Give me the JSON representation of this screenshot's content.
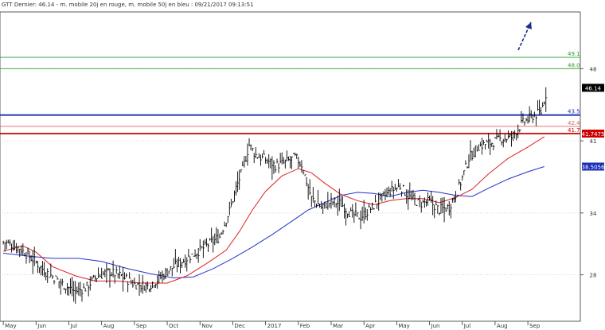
{
  "chart_data": {
    "type": "line",
    "title": "GTT Dernier: 46.14 - m. mobile 20j en rouge, m. mobile 50j en bleu : 09/21/2017 09:13:51",
    "y_range": [
      23.5,
      53.5
    ],
    "y_ticks": [
      "48",
      "41",
      "34",
      "28"
    ],
    "y_tick_values": [
      48,
      41,
      34,
      28
    ],
    "x_months": [
      "May",
      "Jun",
      "Jul",
      "Aug",
      "Sep",
      "Oct",
      "Nov",
      "Dec",
      "2017",
      "Feb",
      "Mar",
      "Apr",
      "May",
      "Jun",
      "Jul",
      "Aug",
      "Sep"
    ],
    "x_month_index": [
      0,
      1,
      2,
      3,
      4,
      5,
      6,
      7,
      8,
      9,
      10,
      11,
      12,
      13,
      14,
      15,
      16
    ],
    "price": [
      [
        0,
        31.2
      ],
      [
        0.5,
        30.6
      ],
      [
        1.0,
        29.2
      ],
      [
        1.3,
        28.3
      ],
      [
        1.6,
        27.6
      ],
      [
        1.9,
        26.9
      ],
      [
        2.2,
        26.4
      ],
      [
        2.5,
        26.7
      ],
      [
        2.8,
        27.7
      ],
      [
        3.2,
        28.3
      ],
      [
        3.6,
        27.9
      ],
      [
        4.0,
        27.1
      ],
      [
        4.4,
        26.9
      ],
      [
        4.7,
        27.5
      ],
      [
        5.1,
        28.6
      ],
      [
        5.6,
        29.6
      ],
      [
        6.1,
        30.6
      ],
      [
        6.6,
        31.7
      ],
      [
        6.9,
        34.2
      ],
      [
        7.1,
        36.4
      ],
      [
        7.3,
        38.2
      ],
      [
        7.5,
        40.6
      ],
      [
        7.7,
        39.6
      ],
      [
        8.0,
        39.2
      ],
      [
        8.3,
        38.6
      ],
      [
        8.6,
        38.9
      ],
      [
        8.9,
        39.4
      ],
      [
        9.1,
        38.7
      ],
      [
        9.4,
        35.4
      ],
      [
        9.7,
        34.6
      ],
      [
        10.0,
        35.1
      ],
      [
        10.3,
        34.9
      ],
      [
        10.6,
        33.9
      ],
      [
        10.9,
        33.6
      ],
      [
        11.2,
        34.4
      ],
      [
        11.5,
        35.3
      ],
      [
        11.8,
        36.1
      ],
      [
        12.1,
        36.6
      ],
      [
        12.4,
        35.5
      ],
      [
        12.7,
        34.9
      ],
      [
        13.0,
        35.1
      ],
      [
        13.3,
        34.3
      ],
      [
        13.6,
        34.6
      ],
      [
        13.9,
        36.5
      ],
      [
        14.2,
        39.3
      ],
      [
        14.5,
        40.5
      ],
      [
        14.9,
        40.8
      ],
      [
        15.2,
        41.2
      ],
      [
        15.5,
        41.3
      ],
      [
        15.8,
        42.6
      ],
      [
        16.1,
        43.3
      ],
      [
        16.4,
        43.8
      ],
      [
        16.6,
        46.1
      ]
    ],
    "ma20": [
      [
        0,
        30.3
      ],
      [
        0.6,
        30.8
      ],
      [
        1.0,
        30.2
      ],
      [
        1.5,
        28.8
      ],
      [
        2.2,
        27.9
      ],
      [
        2.8,
        27.4
      ],
      [
        3.5,
        27.4
      ],
      [
        4.2,
        27.2
      ],
      [
        5.0,
        27.2
      ],
      [
        5.6,
        27.9
      ],
      [
        6.2,
        29.1
      ],
      [
        6.8,
        30.4
      ],
      [
        7.2,
        32.2
      ],
      [
        7.6,
        34.3
      ],
      [
        8.0,
        36.1
      ],
      [
        8.5,
        37.6
      ],
      [
        9.0,
        38.3
      ],
      [
        9.4,
        37.9
      ],
      [
        9.8,
        36.9
      ],
      [
        10.3,
        35.8
      ],
      [
        10.8,
        35.2
      ],
      [
        11.3,
        34.8
      ],
      [
        11.8,
        35.2
      ],
      [
        12.3,
        35.4
      ],
      [
        12.8,
        35.4
      ],
      [
        13.3,
        35.0
      ],
      [
        13.8,
        35.5
      ],
      [
        14.3,
        36.3
      ],
      [
        14.8,
        37.8
      ],
      [
        15.4,
        39.3
      ],
      [
        16.0,
        40.4
      ],
      [
        16.5,
        41.4
      ]
    ],
    "ma50": [
      [
        0,
        30.1
      ],
      [
        0.8,
        29.8
      ],
      [
        1.5,
        29.6
      ],
      [
        2.3,
        29.6
      ],
      [
        3.0,
        29.3
      ],
      [
        3.8,
        28.6
      ],
      [
        4.5,
        28.1
      ],
      [
        5.2,
        27.7
      ],
      [
        5.8,
        27.8
      ],
      [
        6.4,
        28.6
      ],
      [
        7.0,
        29.6
      ],
      [
        7.6,
        30.7
      ],
      [
        8.2,
        31.9
      ],
      [
        8.8,
        33.2
      ],
      [
        9.3,
        34.3
      ],
      [
        9.8,
        35.0
      ],
      [
        10.3,
        35.7
      ],
      [
        10.8,
        36.0
      ],
      [
        11.3,
        35.9
      ],
      [
        11.8,
        35.6
      ],
      [
        12.3,
        36.0
      ],
      [
        12.8,
        36.2
      ],
      [
        13.3,
        36.0
      ],
      [
        13.8,
        35.7
      ],
      [
        14.3,
        35.6
      ],
      [
        14.8,
        36.4
      ],
      [
        15.4,
        37.3
      ],
      [
        16.0,
        38.0
      ],
      [
        16.5,
        38.5
      ]
    ],
    "levels": [
      {
        "value": 49.1,
        "label": "49.1",
        "color": "#2ca02c"
      },
      {
        "value": 48.0,
        "label": "48.0",
        "color": "#2ca02c"
      },
      {
        "value": 43.5,
        "label": "43.5",
        "color": "#1a2eb5"
      },
      {
        "value": 42.4,
        "label": "42.4",
        "color": "#e06060"
      },
      {
        "value": 41.7,
        "label": "41.7",
        "color": "#cc0000"
      }
    ],
    "value_badges": [
      {
        "value": 46.14,
        "label": "46.14",
        "bg": "#000000"
      },
      {
        "value": 41.7,
        "label": "41.7475",
        "bg": "#cc0000"
      },
      {
        "value": 38.5,
        "label": "38.5056",
        "bg": "#1a2eb5"
      }
    ],
    "colors": {
      "price": "#000000",
      "ma20": "#dd2222",
      "ma50": "#2233cc",
      "arrow": "#1a2e8a",
      "grid": "#c8c8c8"
    },
    "grid": true
  }
}
